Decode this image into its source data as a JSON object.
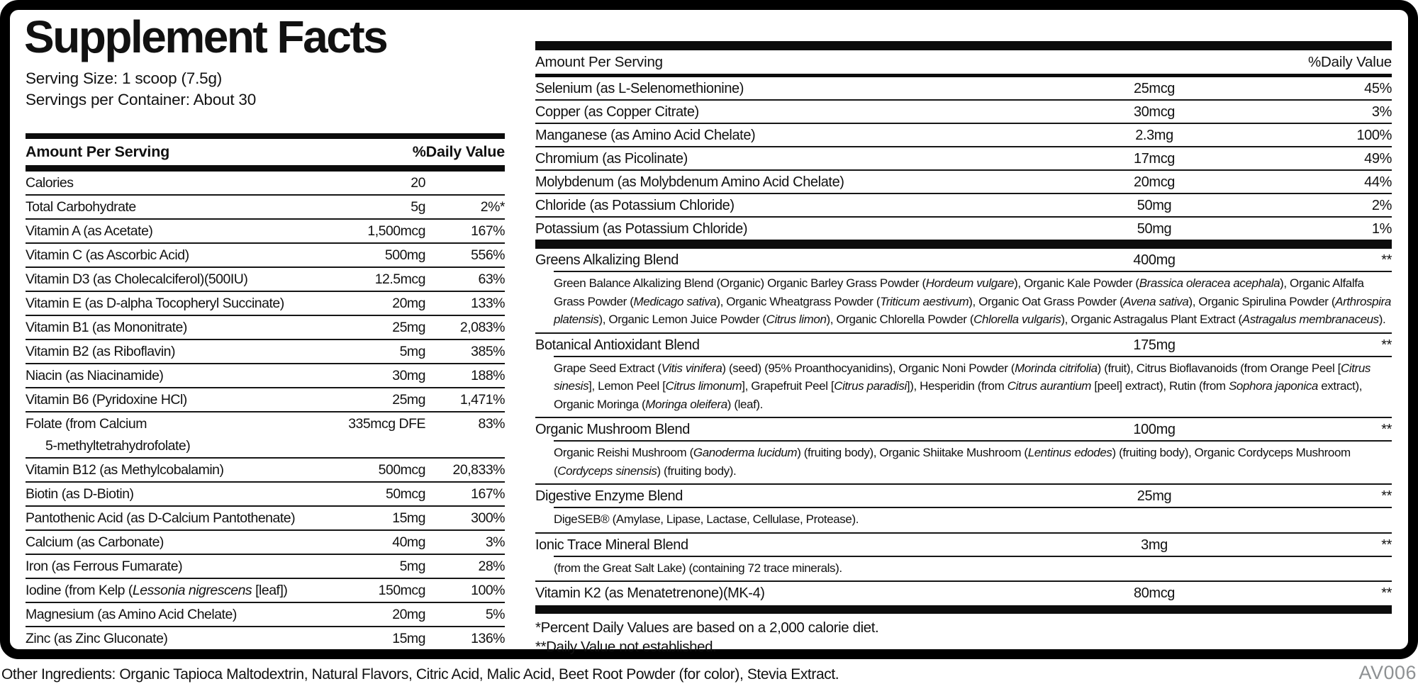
{
  "page": {
    "title": "Supplement Facts",
    "serving_size": "Serving Size: 1 scoop (7.5g)",
    "servings_per_container": "Servings per Container: About 30",
    "amount_header": "Amount Per Serving",
    "dv_header": "%Daily Value",
    "footnotes": [
      "*Percent Daily Values are based on a 2,000 calorie diet.",
      "**Daily Value not established."
    ],
    "other_ingredients": "Other Ingredients: Organic Tapioca Maltodextrin, Natural Flavors, Citric Acid, Malic Acid, Beet Root Powder (for color), Stevia Extract.",
    "product_code": "AV006"
  },
  "left_rows": [
    {
      "name": "Calories",
      "amount": "20",
      "dv": ""
    },
    {
      "name": "Total Carbohydrate",
      "amount": "5g",
      "dv": "2%*"
    },
    {
      "name": "Vitamin A (as Acetate)",
      "amount": "1,500mcg",
      "dv": "167%"
    },
    {
      "name": "Vitamin C (as Ascorbic Acid)",
      "amount": "500mg",
      "dv": "556%"
    },
    {
      "name": "Vitamin D3 (as Cholecalciferol)(500IU)",
      "amount": "12.5mcg",
      "dv": "63%"
    },
    {
      "name": "Vitamin E (as D-alpha Tocopheryl Succinate)",
      "amount": "20mg",
      "dv": "133%"
    },
    {
      "name": "Vitamin B1 (as Mononitrate)",
      "amount": "25mg",
      "dv": "2,083%"
    },
    {
      "name": "Vitamin B2 (as Riboflavin)",
      "amount": "5mg",
      "dv": "385%"
    },
    {
      "name": "Niacin (as Niacinamide)",
      "amount": "30mg",
      "dv": "188%"
    },
    {
      "name": "Vitamin B6 (Pyridoxine HCl)",
      "amount": "25mg",
      "dv": "1,471%"
    },
    {
      "name": "Folate (from Calcium",
      "name2": "5-methyltetrahydrofolate)",
      "amount": "335mcg DFE",
      "dv": "83%"
    },
    {
      "name": "Vitamin B12 (as Methylcobalamin)",
      "amount": "500mcg",
      "dv": "20,833%"
    },
    {
      "name": "Biotin (as D-Biotin)",
      "amount": "50mcg",
      "dv": "167%"
    },
    {
      "name": "Pantothenic Acid (as D-Calcium Pantothenate)",
      "amount": "15mg",
      "dv": "300%"
    },
    {
      "name": "Calcium (as Carbonate)",
      "amount": "40mg",
      "dv": "3%"
    },
    {
      "name": "Iron (as Ferrous Fumarate)",
      "amount": "5mg",
      "dv": "28%"
    },
    {
      "name": [
        {
          "t": "Iodine (from Kelp ("
        },
        {
          "t": "Lessonia nigrescens",
          "i": true
        },
        {
          "t": " [leaf])"
        }
      ],
      "amount": "150mcg",
      "dv": "100%"
    },
    {
      "name": "Magnesium (as Amino Acid Chelate)",
      "amount": "20mg",
      "dv": "5%"
    },
    {
      "name": "Zinc (as Zinc Gluconate)",
      "amount": "15mg",
      "dv": "136%"
    }
  ],
  "right_rows": [
    {
      "name": "Selenium (as L-Selenomethionine)",
      "amount": "25mcg",
      "dv": "45%"
    },
    {
      "name": "Copper (as Copper Citrate)",
      "amount": "30mcg",
      "dv": "3%"
    },
    {
      "name": "Manganese (as Amino Acid Chelate)",
      "amount": "2.3mg",
      "dv": "100%"
    },
    {
      "name": "Chromium (as Picolinate)",
      "amount": "17mcg",
      "dv": "49%"
    },
    {
      "name": "Molybdenum (as Molybdenum Amino Acid Chelate)",
      "amount": "20mcg",
      "dv": "44%"
    },
    {
      "name": "Chloride (as Potassium Chloride)",
      "amount": "50mg",
      "dv": "2%"
    },
    {
      "name": "Potassium (as Potassium Chloride)",
      "amount": "50mg",
      "dv": "1%"
    }
  ],
  "blends": [
    {
      "name": "Greens Alkalizing Blend",
      "amount": "400mg",
      "dv": "**",
      "desc": [
        {
          "t": "Green Balance Alkalizing Blend (Organic) Organic Barley Grass Powder ("
        },
        {
          "t": "Hordeum vulgare",
          "i": true
        },
        {
          "t": "), Organic Kale Powder ("
        },
        {
          "t": "Brassica oleracea acephala",
          "i": true
        },
        {
          "t": "), Organic Alfalfa Grass Powder ("
        },
        {
          "t": "Medicago sativa",
          "i": true
        },
        {
          "t": "), Organic Wheatgrass Powder ("
        },
        {
          "t": "Triticum aestivum",
          "i": true
        },
        {
          "t": "), Organic Oat Grass Powder ("
        },
        {
          "t": "Avena sativa",
          "i": true
        },
        {
          "t": "), Organic Spirulina Powder ("
        },
        {
          "t": "Arthrospira platensis",
          "i": true
        },
        {
          "t": "), Organic Lemon Juice Powder ("
        },
        {
          "t": "Citrus limon",
          "i": true
        },
        {
          "t": "), Organic Chlorella Powder ("
        },
        {
          "t": "Chlorella vulgaris",
          "i": true
        },
        {
          "t": "), Organic Astragalus Plant Extract ("
        },
        {
          "t": "Astragalus membranaceus",
          "i": true
        },
        {
          "t": ")."
        }
      ]
    },
    {
      "name": "Botanical Antioxidant Blend",
      "amount": "175mg",
      "dv": "**",
      "desc": [
        {
          "t": "Grape Seed Extract ("
        },
        {
          "t": "Vitis vinifera",
          "i": true
        },
        {
          "t": ") (seed) (95% Proanthocyanidins), Organic Noni Powder ("
        },
        {
          "t": "Morinda citrifolia",
          "i": true
        },
        {
          "t": ") (fruit), Citrus Bioflavanoids (from Orange Peel ["
        },
        {
          "t": "Citrus sinesis",
          "i": true
        },
        {
          "t": "], Lemon Peel ["
        },
        {
          "t": "Citrus limonum",
          "i": true
        },
        {
          "t": "], Grapefruit Peel ["
        },
        {
          "t": "Citrus paradisi",
          "i": true
        },
        {
          "t": "]), Hesperidin (from "
        },
        {
          "t": "Citrus aurantium",
          "i": true
        },
        {
          "t": " [peel] extract), Rutin (from "
        },
        {
          "t": "Sophora japonica",
          "i": true
        },
        {
          "t": " extract), Organic Moringa ("
        },
        {
          "t": "Moringa oleifera",
          "i": true
        },
        {
          "t": ") (leaf)."
        }
      ]
    },
    {
      "name": "Organic Mushroom Blend",
      "amount": "100mg",
      "dv": "**",
      "desc": [
        {
          "t": "Organic Reishi Mushroom ("
        },
        {
          "t": "Ganoderma lucidum",
          "i": true
        },
        {
          "t": ") (fruiting body), Organic Shiitake Mushroom ("
        },
        {
          "t": "Lentinus edodes",
          "i": true
        },
        {
          "t": ") (fruiting body), Organic Cordyceps Mushroom ("
        },
        {
          "t": "Cordyceps sinensis",
          "i": true
        },
        {
          "t": ") (fruiting body)."
        }
      ]
    },
    {
      "name": "Digestive Enzyme Blend",
      "amount": "25mg",
      "dv": "**",
      "desc": [
        {
          "t": "DigeSEB® (Amylase, Lipase, Lactase, Cellulase, Protease)."
        }
      ]
    },
    {
      "name": "Ionic Trace Mineral Blend",
      "amount": "3mg",
      "dv": "**",
      "desc": [
        {
          "t": "(from the Great Salt Lake) (containing 72 trace minerals)."
        }
      ]
    },
    {
      "name": "Vitamin K2 (as Menatetrenone)(MK-4)",
      "amount": "80mcg",
      "dv": "**",
      "desc": null
    }
  ]
}
